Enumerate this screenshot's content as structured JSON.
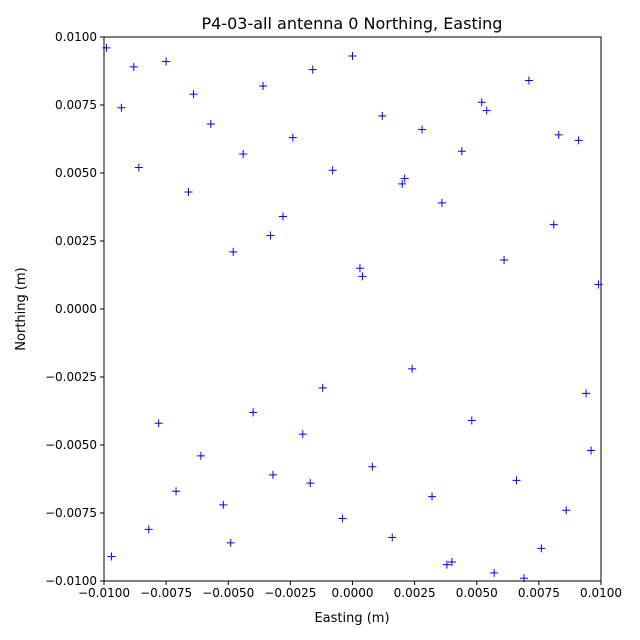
{
  "chart_data": {
    "type": "scatter",
    "title": "P4-03-all antenna 0 Northing, Easting",
    "xlabel": "Easting (m)",
    "ylabel": "Northing (m)",
    "xlim": [
      -0.01,
      0.01
    ],
    "ylim": [
      -0.01,
      0.01
    ],
    "x_ticks": [
      -0.01,
      -0.0075,
      -0.005,
      -0.0025,
      0.0,
      0.0025,
      0.005,
      0.0075,
      0.01
    ],
    "x_tick_labels": [
      "−0.0100",
      "−0.0075",
      "−0.0050",
      "−0.0025",
      "0.0000",
      "0.0025",
      "0.0050",
      "0.0075",
      "0.0100"
    ],
    "y_ticks": [
      -0.01,
      -0.0075,
      -0.005,
      -0.0025,
      0.0,
      0.0025,
      0.005,
      0.0075,
      0.01
    ],
    "y_tick_labels": [
      "−0.0100",
      "−0.0075",
      "−0.0050",
      "−0.0025",
      "0.0000",
      "0.0025",
      "0.0050",
      "0.0075",
      "0.0100"
    ],
    "grid": false,
    "legend": "none",
    "marker": "+",
    "color": "#0000ff",
    "series": [
      {
        "x": [
          -0.0099,
          -0.0093,
          -0.0086,
          -0.0082,
          -0.0075,
          -0.0071,
          -0.0066,
          -0.0061,
          -0.0057,
          -0.0052,
          -0.0048,
          -0.0044,
          -0.004,
          -0.0036,
          -0.0032,
          -0.0028,
          -0.0024,
          -0.002,
          -0.0016,
          -0.0012,
          -0.0008,
          -0.0004,
          0.0,
          0.0004,
          0.0008,
          0.0012,
          0.0016,
          0.002,
          0.0024,
          0.0028,
          0.0032,
          0.0036,
          0.004,
          0.0044,
          0.0048,
          0.0052,
          0.0057,
          0.0061,
          0.0066,
          0.0071,
          0.0076,
          0.0081,
          0.0086,
          0.0091,
          0.0096,
          -0.0097,
          -0.0088,
          -0.0078,
          -0.0064,
          -0.0049,
          -0.0033,
          -0.0017,
          0.0003,
          0.0021,
          0.0038,
          0.0054,
          0.0069,
          0.0083,
          0.0094,
          0.0099
        ],
        "y": [
          0.0096,
          0.0074,
          0.0052,
          -0.0081,
          0.0091,
          -0.0067,
          0.0043,
          -0.0054,
          0.0068,
          -0.0072,
          0.0021,
          0.0057,
          -0.0038,
          0.0082,
          -0.0061,
          0.0034,
          0.0063,
          -0.0046,
          0.0088,
          -0.0029,
          0.0051,
          -0.0077,
          0.0093,
          0.0012,
          -0.0058,
          0.0071,
          -0.0084,
          0.0046,
          -0.0022,
          0.0066,
          -0.0069,
          0.0039,
          -0.0093,
          0.0058,
          -0.0041,
          0.0076,
          -0.0097,
          0.0018,
          -0.0063,
          0.0084,
          -0.0088,
          0.0031,
          -0.0074,
          0.0062,
          -0.0052,
          -0.0091,
          0.0089,
          -0.0042,
          0.0079,
          -0.0086,
          0.0027,
          -0.0064,
          0.0015,
          0.0048,
          -0.0094,
          0.0073,
          -0.0099,
          0.0064,
          -0.0031,
          0.0009
        ]
      }
    ]
  }
}
